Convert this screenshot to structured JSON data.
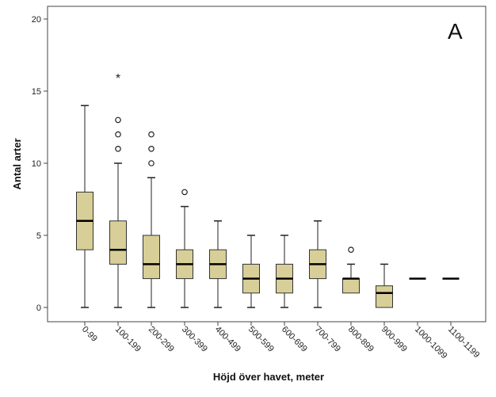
{
  "chart_data": {
    "type": "box",
    "panel_label": "A",
    "xlabel": "Höjd över havet, meter",
    "ylabel": "Antal arter",
    "ylim": [
      0,
      21
    ],
    "yticks": [
      0,
      5,
      10,
      15,
      20
    ],
    "grid": false,
    "box_color": "#d8cf98",
    "categories": [
      "0-99",
      "100-199",
      "200-299",
      "300-399",
      "400-499",
      "500-599",
      "600-699",
      "700-799",
      "800-899",
      "900-999",
      "1000-1099",
      "1100-1199"
    ],
    "boxes": [
      {
        "category": "0-99",
        "min": 0,
        "q1": 4,
        "median": 6,
        "q3": 8,
        "max": 14,
        "outliers": [],
        "extremes": []
      },
      {
        "category": "100-199",
        "min": 0,
        "q1": 3,
        "median": 4,
        "q3": 6,
        "max": 10,
        "outliers": [
          11,
          12,
          13
        ],
        "extremes": [
          16
        ]
      },
      {
        "category": "200-299",
        "min": 0,
        "q1": 2,
        "median": 3,
        "q3": 5,
        "max": 9,
        "outliers": [
          10,
          11,
          12
        ],
        "extremes": []
      },
      {
        "category": "300-399",
        "min": 0,
        "q1": 2,
        "median": 3,
        "q3": 4,
        "max": 7,
        "outliers": [
          8
        ],
        "extremes": []
      },
      {
        "category": "400-499",
        "min": 0,
        "q1": 2,
        "median": 3,
        "q3": 4,
        "max": 6,
        "outliers": [],
        "extremes": []
      },
      {
        "category": "500-599",
        "min": 0,
        "q1": 1,
        "median": 2,
        "q3": 3,
        "max": 5,
        "outliers": [],
        "extremes": []
      },
      {
        "category": "600-699",
        "min": 0,
        "q1": 1,
        "median": 2,
        "q3": 3,
        "max": 5,
        "outliers": [],
        "extremes": []
      },
      {
        "category": "700-799",
        "min": 0,
        "q1": 2,
        "median": 3,
        "q3": 4,
        "max": 6,
        "outliers": [],
        "extremes": []
      },
      {
        "category": "800-899",
        "min": 1,
        "q1": 1,
        "median": 2,
        "q3": 2,
        "max": 3,
        "outliers": [
          4
        ],
        "extremes": []
      },
      {
        "category": "900-999",
        "min": 0,
        "q1": 0,
        "median": 1,
        "q3": 1.5,
        "max": 3,
        "outliers": [],
        "extremes": []
      },
      {
        "category": "1000-1099",
        "min": 2,
        "q1": 2,
        "median": 2,
        "q3": 2,
        "max": 2,
        "outliers": [],
        "extremes": []
      },
      {
        "category": "1100-1199",
        "min": 2,
        "q1": 2,
        "median": 2,
        "q3": 2,
        "max": 2,
        "outliers": [],
        "extremes": []
      }
    ]
  }
}
